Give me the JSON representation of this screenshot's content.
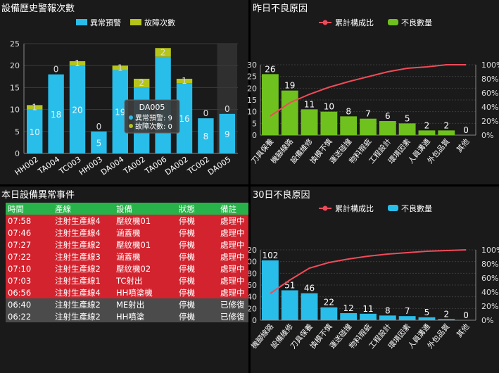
{
  "panels": {
    "history": {
      "title": "設備歷史警報次數"
    },
    "yesterday": {
      "title": "昨日不良原因"
    },
    "events": {
      "title": "本日設備異常事件"
    },
    "month": {
      "title": "30日不良原因"
    }
  },
  "chart_data": [
    {
      "type": "bar",
      "stacked": true,
      "categories": [
        "HH002",
        "TA004",
        "TC003",
        "HH003",
        "DA004",
        "TA002",
        "TA006",
        "DA002",
        "TC002",
        "DA005"
      ],
      "series": [
        {
          "name": "異常預警",
          "color": "#29bde9",
          "values": [
            10,
            18,
            20,
            5,
            19,
            15,
            22,
            16,
            8,
            9
          ]
        },
        {
          "name": "故障次數",
          "color": "#b6c51a",
          "values": [
            1,
            0,
            1,
            0,
            1,
            2,
            2,
            1,
            0,
            0
          ]
        }
      ],
      "ylim": [
        0,
        25
      ],
      "yticks": [
        0,
        5,
        10,
        15,
        20,
        25
      ],
      "legend": "top-center",
      "highlight_index": 9,
      "tooltip": {
        "title": "DA005",
        "lines": [
          "異常預警: 9",
          "故障次數: 0"
        ]
      }
    },
    {
      "type": "bar+line",
      "categories": [
        "刀具保養",
        "機腳線路",
        "設備維修",
        "換模不慎",
        "運送碰撞",
        "物料瑕疵",
        "工程設計",
        "環境因素",
        "人員溝通",
        "外包品質",
        "其他"
      ],
      "series": [
        {
          "name": "不良數量",
          "color": "#6fc11e",
          "values": [
            26,
            19,
            11,
            10,
            8,
            7,
            6,
            5,
            2,
            2,
            0
          ]
        },
        {
          "name": "累計構成比",
          "color": "#f04b5a",
          "values": [
            27,
            46,
            58,
            68,
            76,
            83,
            90,
            95,
            97,
            100,
            100
          ]
        }
      ],
      "legend_order": [
        "累計構成比",
        "不良數量"
      ],
      "ylim_left": [
        0,
        30
      ],
      "yticks_left": [
        0,
        5,
        10,
        15,
        20,
        25,
        30
      ],
      "yticks_right": [
        "0%",
        "20%",
        "40%",
        "60%",
        "80%",
        "100%"
      ],
      "legend": "top-center"
    },
    {
      "type": "bar+line",
      "categories": [
        "機腳線路",
        "設備維修",
        "刀具保養",
        "換模不慎",
        "運送碰撞",
        "物料瑕疵",
        "工程設計",
        "環境因素",
        "人員溝通",
        "外包品質",
        "其他"
      ],
      "series": [
        {
          "name": "不良數量",
          "color": "#29bde9",
          "values": [
            102,
            51,
            46,
            22,
            12,
            11,
            8,
            7,
            5,
            2,
            0
          ]
        },
        {
          "name": "累計構成比",
          "color": "#f04b5a",
          "values": [
            38,
            57,
            74,
            82,
            87,
            91,
            94,
            96,
            98,
            99,
            100
          ]
        }
      ],
      "legend_order": [
        "累計構成比",
        "不良數量"
      ],
      "ylim_left": [
        0,
        120
      ],
      "yticks_left": [
        0,
        20,
        40,
        60,
        80,
        100,
        120
      ],
      "yticks_right": [
        "0%",
        "20%",
        "40%",
        "60%",
        "80%",
        "100%"
      ],
      "legend": "top-center"
    }
  ],
  "events": {
    "headers": [
      "時間",
      "產線",
      "設備",
      "狀態",
      "備註"
    ],
    "rows": [
      {
        "time": "07:58",
        "line": "注射生產線4",
        "device": "壓紋機01",
        "status": "停機",
        "note": "處理中",
        "state": "active"
      },
      {
        "time": "07:46",
        "line": "注射生產線4",
        "device": "涵蓋機",
        "status": "停機",
        "note": "處理中",
        "state": "active"
      },
      {
        "time": "07:27",
        "line": "注射生產線2",
        "device": "壓紋機01",
        "status": "停機",
        "note": "處理中",
        "state": "active"
      },
      {
        "time": "07:22",
        "line": "注射生產線3",
        "device": "涵蓋機",
        "status": "停機",
        "note": "處理中",
        "state": "active"
      },
      {
        "time": "07:10",
        "line": "注射生產線2",
        "device": "壓紋機02",
        "status": "停機",
        "note": "處理中",
        "state": "active"
      },
      {
        "time": "07:03",
        "line": "注射生產線1",
        "device": "TC射出",
        "status": "停機",
        "note": "處理中",
        "state": "active"
      },
      {
        "time": "06:56",
        "line": "注射生產線4",
        "device": "HH噴塗機",
        "status": "停機",
        "note": "處理中",
        "state": "active"
      },
      {
        "time": "06:40",
        "line": "注射生產線2",
        "device": "ME射出",
        "status": "停機",
        "note": "已修復",
        "state": "resolved"
      },
      {
        "time": "06:22",
        "line": "注射生產線2",
        "device": "HH噴塗",
        "status": "停機",
        "note": "已修復",
        "state": "resolved"
      }
    ]
  }
}
